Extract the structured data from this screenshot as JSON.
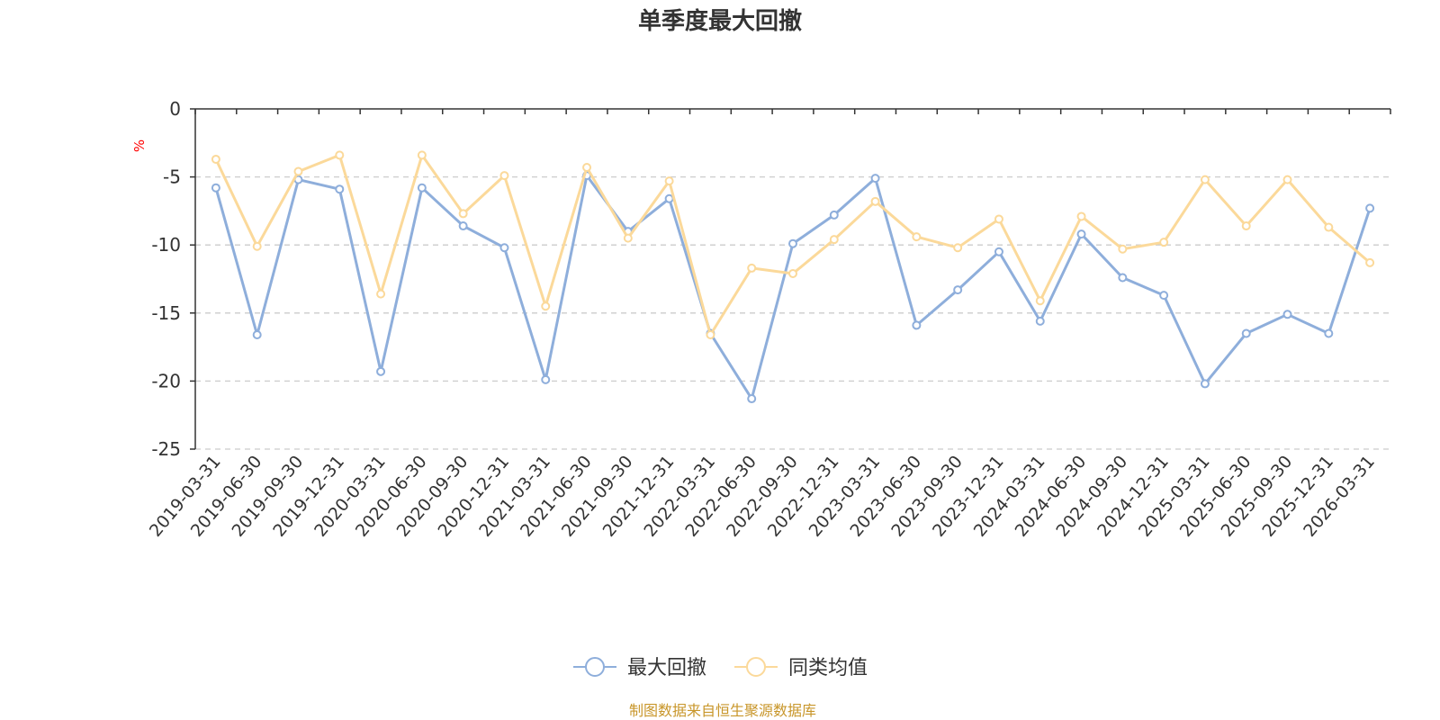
{
  "chart_data": {
    "type": "line",
    "title": "单季度最大回撤",
    "ylabel": "%",
    "ylim": [
      -25,
      0
    ],
    "yticks": [
      0,
      -5,
      -10,
      -15,
      -20,
      -25
    ],
    "grid": true,
    "legend_position": "bottom",
    "categories": [
      "2019-03-31",
      "2019-06-30",
      "2019-09-30",
      "2019-12-31",
      "2020-03-31",
      "2020-06-30",
      "2020-09-30",
      "2020-12-31",
      "2021-03-31",
      "2021-06-30",
      "2021-09-30",
      "2021-12-31",
      "2022-03-31",
      "2022-06-30",
      "2022-09-30",
      "2022-12-31",
      "2023-03-31",
      "2023-06-30",
      "2023-09-30",
      "2023-12-31",
      "2024-03-31",
      "2024-06-30",
      "2024-09-30",
      "2024-12-31",
      "2025-03-31",
      "2025-06-30",
      "2025-09-30",
      "2025-12-31",
      "2026-03-31"
    ],
    "series": [
      {
        "name": "最大回撤",
        "color": "#8eaedb",
        "values": [
          -5.8,
          -16.6,
          -5.2,
          -5.9,
          -19.3,
          -5.8,
          -8.6,
          -10.2,
          -19.9,
          -4.9,
          -9.0,
          -6.6,
          -16.5,
          -21.3,
          -9.9,
          -7.8,
          -5.1,
          -15.9,
          -13.3,
          -10.5,
          -15.6,
          -9.2,
          -12.4,
          -13.7,
          -20.2,
          -16.5,
          -15.1,
          -16.5,
          -7.3
        ]
      },
      {
        "name": "同类均值",
        "color": "#fbd99a",
        "values": [
          -3.7,
          -10.1,
          -4.6,
          -3.4,
          -13.6,
          -3.4,
          -7.7,
          -4.9,
          -14.5,
          -4.3,
          -9.5,
          -5.3,
          -16.6,
          -11.7,
          -12.1,
          -9.6,
          -6.8,
          -9.4,
          -10.2,
          -8.1,
          -14.1,
          -7.9,
          -10.3,
          -9.8,
          -5.2,
          -8.6,
          -5.2,
          -8.7,
          -11.3
        ]
      }
    ]
  },
  "source_note": "制图数据来自恒生聚源数据库"
}
